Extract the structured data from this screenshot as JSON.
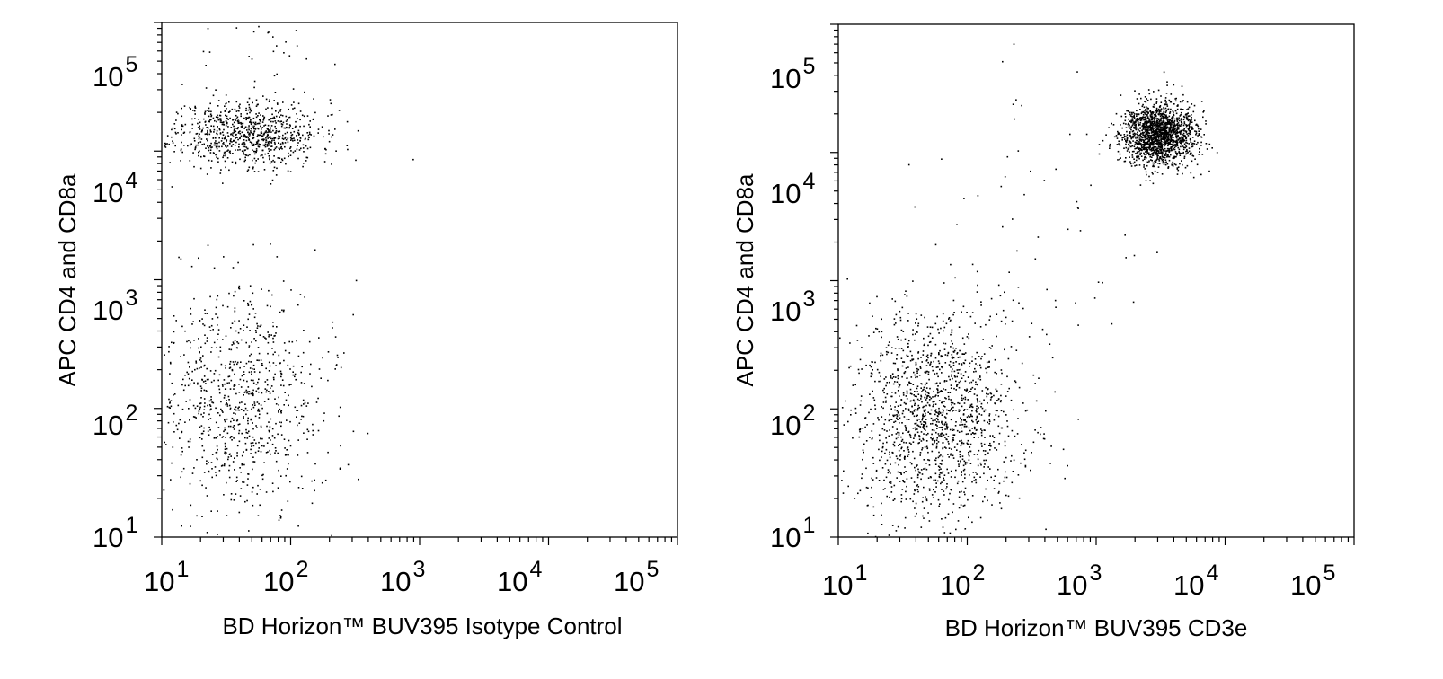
{
  "chart_data": [
    {
      "type": "scatter",
      "xlabel": "BD Horizon™  BUV395 Isotype Control",
      "ylabel": "APC CD4 and CD8a",
      "x_scale": "log",
      "y_scale": "log",
      "xlim": [
        10,
        100000
      ],
      "ylim": [
        10,
        100000
      ],
      "x_ticks": [
        {
          "value": 10,
          "base": "10",
          "exp": "1"
        },
        {
          "value": 100,
          "base": "10",
          "exp": "2"
        },
        {
          "value": 1000,
          "base": "10",
          "exp": "3"
        },
        {
          "value": 10000,
          "base": "10",
          "exp": "4"
        },
        {
          "value": 100000,
          "base": "10",
          "exp": "5"
        }
      ],
      "y_ticks": [
        {
          "value": 10,
          "base": "10",
          "exp": "1"
        },
        {
          "value": 100,
          "base": "10",
          "exp": "2"
        },
        {
          "value": 1000,
          "base": "10",
          "exp": "3"
        },
        {
          "value": 10000,
          "base": "10",
          "exp": "4"
        },
        {
          "value": 100000,
          "base": "10",
          "exp": "5"
        }
      ],
      "point_color": "#000000",
      "populations": [
        {
          "x_center": 45,
          "y_center": 14000,
          "x_spread_decades": 0.28,
          "y_spread_decades": 0.13,
          "count": 850
        },
        {
          "x_center": 40,
          "y_center": 110,
          "x_spread_decades": 0.33,
          "y_spread_decades": 0.45,
          "count": 900
        },
        {
          "x_center": 60,
          "y_center": 60000,
          "x_spread_decades": 0.35,
          "y_spread_decades": 0.3,
          "count": 40
        }
      ]
    },
    {
      "type": "scatter",
      "xlabel": "BD Horizon™  BUV395 CD3e",
      "ylabel": "APC CD4 and CD8a",
      "x_scale": "log",
      "y_scale": "log",
      "xlim": [
        10,
        100000
      ],
      "ylim": [
        10,
        100000
      ],
      "x_ticks": [
        {
          "value": 10,
          "base": "10",
          "exp": "1"
        },
        {
          "value": 100,
          "base": "10",
          "exp": "2"
        },
        {
          "value": 1000,
          "base": "10",
          "exp": "3"
        },
        {
          "value": 10000,
          "base": "10",
          "exp": "4"
        },
        {
          "value": 100000,
          "base": "10",
          "exp": "5"
        }
      ],
      "y_ticks": [
        {
          "value": 10,
          "base": "10",
          "exp": "1"
        },
        {
          "value": 100,
          "base": "10",
          "exp": "2"
        },
        {
          "value": 1000,
          "base": "10",
          "exp": "3"
        },
        {
          "value": 10000,
          "base": "10",
          "exp": "4"
        },
        {
          "value": 100000,
          "base": "10",
          "exp": "5"
        }
      ],
      "point_color": "#000000",
      "populations": [
        {
          "x_center": 3000,
          "y_center": 14000,
          "x_spread_decades": 0.14,
          "y_spread_decades": 0.12,
          "count": 1700
        },
        {
          "x_center": 55,
          "y_center": 90,
          "x_spread_decades": 0.33,
          "y_spread_decades": 0.4,
          "count": 1500
        },
        {
          "x_center": 400,
          "y_center": 3000,
          "x_spread_decades": 0.6,
          "y_spread_decades": 0.6,
          "count": 70
        }
      ]
    }
  ]
}
